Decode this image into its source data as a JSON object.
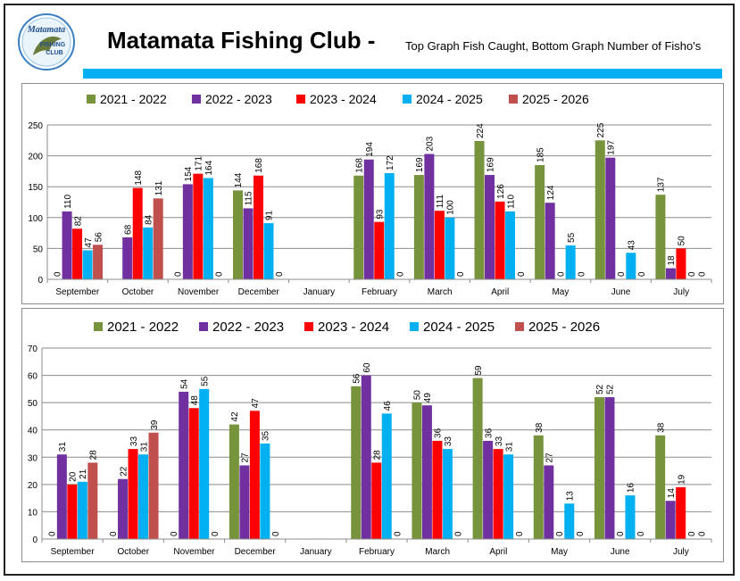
{
  "header": {
    "title": "Matamata Fishing Club -",
    "subtitle": "Top Graph Fish Caught, Bottom Graph Number of Fisho's",
    "logo_text_top": "Matamata",
    "logo_text_mid": "FISHING",
    "logo_text_bottom": "CLUB",
    "accent_color": "#00b0f0"
  },
  "colors": {
    "2021 - 2022": "#77933c",
    "2022 - 2023": "#7030a0",
    "2023 - 2024": "#ff0000",
    "2024 - 2025": "#00b0f0",
    "2025 - 2026": "#c0504d"
  },
  "chart_data": [
    {
      "type": "bar",
      "title": "Fish Caught",
      "categories": [
        "September",
        "October",
        "November",
        "December",
        "January",
        "February",
        "March",
        "April",
        "May",
        "June",
        "July"
      ],
      "ylim": [
        0,
        250
      ],
      "yticks": [
        0,
        50,
        100,
        150,
        200,
        250
      ],
      "legend_position": "top",
      "series": [
        {
          "name": "2021 - 2022",
          "values": [
            0,
            null,
            0,
            144,
            null,
            168,
            169,
            224,
            185,
            225,
            137
          ]
        },
        {
          "name": "2022 - 2023",
          "values": [
            110,
            68,
            154,
            115,
            null,
            194,
            203,
            169,
            124,
            197,
            18
          ]
        },
        {
          "name": "2023 - 2024",
          "values": [
            82,
            148,
            171,
            168,
            null,
            93,
            111,
            126,
            0,
            0,
            50
          ]
        },
        {
          "name": "2024 - 2025",
          "values": [
            47,
            84,
            164,
            91,
            null,
            172,
            100,
            110,
            55,
            43,
            0
          ]
        },
        {
          "name": "2025 - 2026",
          "values": [
            56,
            131,
            0,
            0,
            null,
            0,
            0,
            0,
            0,
            0,
            0
          ]
        }
      ]
    },
    {
      "type": "bar",
      "title": "Number of Fisho's",
      "categories": [
        "September",
        "October",
        "November",
        "December",
        "January",
        "February",
        "March",
        "April",
        "May",
        "June",
        "July"
      ],
      "ylim": [
        0,
        70
      ],
      "yticks": [
        0,
        10,
        20,
        30,
        40,
        50,
        60,
        70
      ],
      "legend_position": "top",
      "series": [
        {
          "name": "2021 - 2022",
          "values": [
            0,
            0,
            0,
            42,
            null,
            56,
            50,
            59,
            38,
            52,
            38
          ]
        },
        {
          "name": "2022 - 2023",
          "values": [
            31,
            22,
            54,
            27,
            null,
            60,
            49,
            36,
            27,
            52,
            14
          ]
        },
        {
          "name": "2023 - 2024",
          "values": [
            20,
            33,
            48,
            47,
            null,
            28,
            36,
            33,
            0,
            0,
            19
          ]
        },
        {
          "name": "2024 - 2025",
          "values": [
            21,
            31,
            55,
            35,
            null,
            46,
            33,
            31,
            13,
            16,
            0
          ]
        },
        {
          "name": "2025 - 2026",
          "values": [
            28,
            39,
            0,
            0,
            null,
            0,
            0,
            0,
            0,
            0,
            0
          ]
        }
      ]
    }
  ]
}
